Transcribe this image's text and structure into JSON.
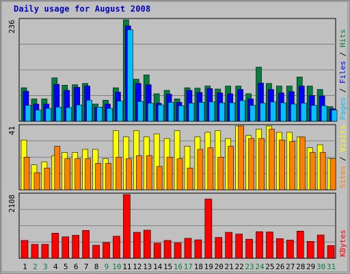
{
  "page": {
    "title": "Daily usage for August 2008",
    "colors": {
      "background": "#c0c0c0",
      "plot_bg": "#c0c0c0",
      "title": "#0000c0",
      "hits": "#007f3f",
      "files": "#0000ff",
      "pages": "#00c0ff",
      "visits": "#ffff00",
      "sites": "#ff8000",
      "kbytes": "#ff0000",
      "weekend_label": "#007f3f",
      "weekday_label": "#000000",
      "grid": "#808080"
    }
  },
  "chart_data": [
    {
      "type": "bar",
      "title": "Daily usage for August 2008",
      "panel": "hits-files-pages",
      "ymax_label": "236",
      "ylim": [
        0,
        236
      ],
      "axis_label_parts": [
        {
          "text": "Pages",
          "color": "#00c0ff"
        },
        {
          "text": " / ",
          "color": "#000000"
        },
        {
          "text": "Files",
          "color": "#0000ff"
        },
        {
          "text": " / ",
          "color": "#000000"
        },
        {
          "text": "Hits",
          "color": "#007f3f"
        }
      ],
      "categories": [
        "1",
        "2",
        "3",
        "4",
        "5",
        "6",
        "7",
        "8",
        "9",
        "10",
        "11",
        "12",
        "13",
        "14",
        "15",
        "16",
        "17",
        "18",
        "19",
        "20",
        "21",
        "22",
        "23",
        "24",
        "25",
        "26",
        "27",
        "28",
        "29",
        "30",
        "31"
      ],
      "series": [
        {
          "name": "Hits",
          "values": [
            78,
            52,
            52,
            101,
            84,
            85,
            88,
            40,
            49,
            78,
            236,
            98,
            108,
            64,
            72,
            52,
            78,
            77,
            82,
            75,
            82,
            82,
            64,
            126,
            88,
            82,
            82,
            103,
            82,
            74,
            34
          ]
        },
        {
          "name": "Files",
          "values": [
            70,
            40,
            40,
            86,
            72,
            79,
            82,
            33,
            40,
            68,
            222,
            88,
            85,
            42,
            63,
            44,
            72,
            67,
            76,
            66,
            64,
            74,
            52,
            89,
            74,
            66,
            69,
            82,
            60,
            59,
            29
          ]
        },
        {
          "name": "Pages",
          "values": [
            37,
            26,
            30,
            33,
            32,
            38,
            49,
            33,
            30,
            47,
            213,
            46,
            42,
            38,
            44,
            36,
            42,
            44,
            45,
            43,
            43,
            48,
            37,
            42,
            45,
            43,
            40,
            42,
            37,
            36,
            26
          ]
        }
      ]
    },
    {
      "type": "bar",
      "panel": "visits-sites",
      "ymax_label": "41",
      "ylim": [
        0,
        41
      ],
      "axis_label_parts": [
        {
          "text": "Sites",
          "color": "#ff8000"
        },
        {
          "text": " / ",
          "color": "#000000"
        },
        {
          "text": "Visits",
          "color": "#ffff00"
        }
      ],
      "categories": [
        "1",
        "2",
        "3",
        "4",
        "5",
        "6",
        "7",
        "8",
        "9",
        "10",
        "11",
        "12",
        "13",
        "14",
        "15",
        "16",
        "17",
        "18",
        "19",
        "20",
        "21",
        "22",
        "23",
        "24",
        "25",
        "26",
        "27",
        "28",
        "29",
        "30",
        "31"
      ],
      "series": [
        {
          "name": "Visits",
          "values": [
            32,
            16,
            18,
            22,
            24,
            24,
            26,
            26,
            20,
            38,
            34,
            38,
            34,
            36,
            33,
            38,
            28,
            34,
            37,
            38,
            33,
            41,
            35,
            39,
            41,
            37,
            37,
            34,
            27,
            29,
            20
          ]
        },
        {
          "name": "Sites",
          "values": [
            21,
            11,
            14,
            28,
            20,
            20,
            20,
            17,
            17,
            21,
            20,
            22,
            22,
            15,
            21,
            20,
            14,
            26,
            27,
            21,
            28,
            41,
            33,
            33,
            39,
            32,
            31,
            34,
            24,
            24,
            20
          ]
        }
      ]
    },
    {
      "type": "bar",
      "panel": "kbytes",
      "ymax_label": "2108",
      "ylim": [
        0,
        2108
      ],
      "axis_label_parts": [
        {
          "text": "KBytes",
          "color": "#ff0000"
        }
      ],
      "categories": [
        "1",
        "2",
        "3",
        "4",
        "5",
        "6",
        "7",
        "8",
        "9",
        "10",
        "11",
        "12",
        "13",
        "14",
        "15",
        "16",
        "17",
        "18",
        "19",
        "20",
        "21",
        "22",
        "23",
        "24",
        "25",
        "26",
        "27",
        "28",
        "29",
        "30",
        "31"
      ],
      "series": [
        {
          "name": "KBytes",
          "values": [
            590,
            460,
            460,
            830,
            710,
            760,
            920,
            430,
            520,
            730,
            2108,
            860,
            930,
            500,
            590,
            510,
            660,
            610,
            1960,
            690,
            860,
            800,
            630,
            880,
            870,
            650,
            600,
            900,
            560,
            770,
            420
          ]
        }
      ]
    }
  ]
}
